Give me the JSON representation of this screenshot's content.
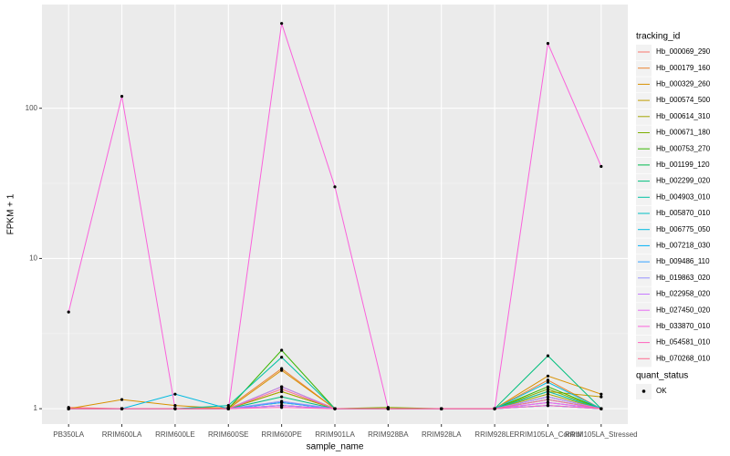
{
  "chart_data": {
    "type": "line",
    "title": null,
    "x_label": "sample_name",
    "y_label": "FPKM + 1",
    "categories": [
      "PB350LA",
      "RRIM600LA",
      "RRIM600LE",
      "RRIM600SE",
      "RRIM600PE",
      "RRIM901LA",
      "RRIM928BA",
      "RRIM928LA",
      "RRIM928LE",
      "RRIM105LA_Control",
      "RRIM105LA_Stressed"
    ],
    "log_y": true,
    "ylim": [
      0.79,
      490
    ],
    "yticks": [
      1,
      10,
      100
    ],
    "grid": true,
    "legend_title": "tracking_id",
    "legend_position": "right",
    "quant_status": {
      "title": "quant_status",
      "labels": [
        "OK"
      ],
      "color": "#000000"
    },
    "series": [
      {
        "name": "Hb_000069_290",
        "color": "#F8766D",
        "values": [
          1.02,
          1,
          1,
          1,
          1.05,
          1,
          1,
          1,
          1,
          1.1,
          1
        ]
      },
      {
        "name": "Hb_000179_160",
        "color": "#EA8331",
        "values": [
          1,
          1,
          1,
          1.02,
          1.85,
          1,
          1,
          1,
          1,
          1.55,
          1
        ]
      },
      {
        "name": "Hb_000329_260",
        "color": "#D89000",
        "values": [
          1,
          1.15,
          1.05,
          1,
          1.8,
          1,
          1,
          1,
          1,
          1.65,
          1.25
        ]
      },
      {
        "name": "Hb_000574_500",
        "color": "#C09B00",
        "values": [
          1,
          1,
          1,
          1,
          1.3,
          1,
          1,
          1,
          1,
          1.3,
          1.2
        ]
      },
      {
        "name": "Hb_000614_310",
        "color": "#A3A500",
        "values": [
          1,
          1,
          1,
          1,
          1.3,
          1,
          1,
          1,
          1,
          1.25,
          1
        ]
      },
      {
        "name": "Hb_000671_180",
        "color": "#7CAE00",
        "values": [
          1,
          1,
          1,
          1,
          1.4,
          1,
          1.02,
          1,
          1,
          1.35,
          1
        ]
      },
      {
        "name": "Hb_000753_270",
        "color": "#39B600",
        "values": [
          1,
          1,
          1,
          1,
          2.45,
          1,
          1,
          1,
          1,
          1.4,
          1
        ]
      },
      {
        "name": "Hb_001199_120",
        "color": "#00BB4E",
        "values": [
          1,
          1,
          1,
          1,
          1.1,
          1,
          1,
          1,
          1,
          1.2,
          1
        ]
      },
      {
        "name": "Hb_002299_020",
        "color": "#00BF7D",
        "values": [
          1,
          1,
          1,
          1,
          1.2,
          1,
          1,
          1,
          1,
          2.25,
          1
        ]
      },
      {
        "name": "Hb_004903_010",
        "color": "#00C1A3",
        "values": [
          1,
          1,
          1,
          1.05,
          2.2,
          1,
          1,
          1,
          1,
          1.3,
          1
        ]
      },
      {
        "name": "Hb_005870_010",
        "color": "#00BFC4",
        "values": [
          1,
          1,
          1,
          1,
          1.1,
          1,
          1,
          1,
          1,
          1.15,
          1
        ]
      },
      {
        "name": "Hb_006775_050",
        "color": "#00BAE0",
        "values": [
          1,
          1,
          1.25,
          1,
          1.05,
          1,
          1,
          1,
          1,
          1.5,
          1
        ]
      },
      {
        "name": "Hb_007218_030",
        "color": "#00B0F6",
        "values": [
          1,
          1,
          1,
          1,
          1.05,
          1,
          1,
          1,
          1,
          1.05,
          1
        ]
      },
      {
        "name": "Hb_009486_110",
        "color": "#35A2FF",
        "values": [
          1,
          1,
          1,
          1,
          1.1,
          1,
          1,
          1,
          1,
          1.05,
          1
        ]
      },
      {
        "name": "Hb_019863_020",
        "color": "#9590FF",
        "values": [
          1,
          1,
          1,
          1,
          1.12,
          1,
          1,
          1,
          1,
          1.1,
          1
        ]
      },
      {
        "name": "Hb_022958_020",
        "color": "#C77CFF",
        "values": [
          1,
          1,
          1,
          1,
          1.4,
          1,
          1,
          1,
          1,
          1.2,
          1
        ]
      },
      {
        "name": "Hb_027450_020",
        "color": "#E76BF3",
        "values": [
          1,
          1,
          1,
          1,
          1.05,
          1,
          1,
          1,
          1,
          1.1,
          1
        ]
      },
      {
        "name": "Hb_033870_010",
        "color": "#FA62DB",
        "values": [
          4.4,
          120,
          1,
          1,
          367,
          30,
          1,
          1,
          1,
          270,
          41
        ]
      },
      {
        "name": "Hb_054581_010",
        "color": "#FF62BC",
        "values": [
          1,
          1,
          1,
          1,
          1.02,
          1,
          1,
          1,
          1,
          1.05,
          1
        ]
      },
      {
        "name": "Hb_070268_010",
        "color": "#FF6C91",
        "values": [
          1,
          1,
          1,
          1,
          1.35,
          1,
          1,
          1,
          1,
          1.15,
          1
        ]
      }
    ]
  }
}
